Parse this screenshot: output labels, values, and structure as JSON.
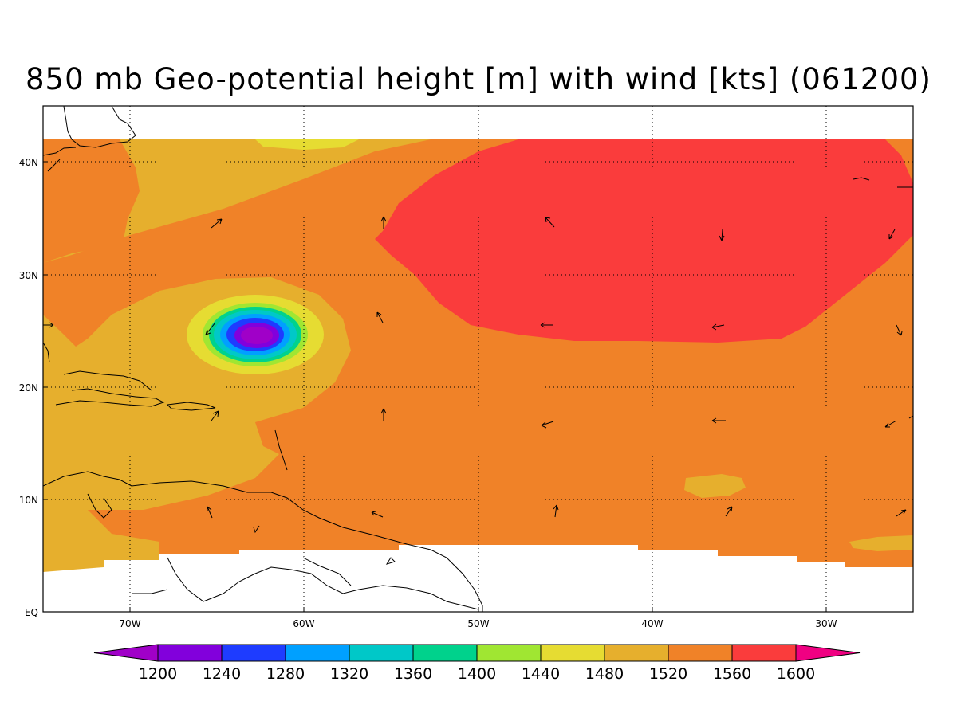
{
  "title": "850 mb Geo-potential height [m] with wind [kts] (061200)",
  "map": {
    "projection": "lat-lon",
    "region": "Tropical and subtropical North Atlantic",
    "lon_range": [
      -75,
      -25
    ],
    "lat_range": [
      0,
      45
    ],
    "lat_labels": [
      "40N",
      "30N",
      "20N",
      "10N",
      "EQ"
    ],
    "lon_labels": [
      "70W",
      "60W",
      "50W",
      "40W",
      "30W"
    ],
    "grid": "dotted",
    "features": [
      "geopotential height shaded contours",
      "wind vectors",
      "coastlines"
    ]
  },
  "colorbar": {
    "labels": [
      "1200",
      "1240",
      "1280",
      "1320",
      "1360",
      "1400",
      "1440",
      "1480",
      "1520",
      "1560",
      "1600"
    ],
    "colors": [
      "#a000c8",
      "#8200dc",
      "#1e3cff",
      "#00a0ff",
      "#00c8c8",
      "#00d28c",
      "#a0e632",
      "#e6dc32",
      "#e6af2d",
      "#f08228",
      "#fa3c3c",
      "#f00082"
    ]
  }
}
